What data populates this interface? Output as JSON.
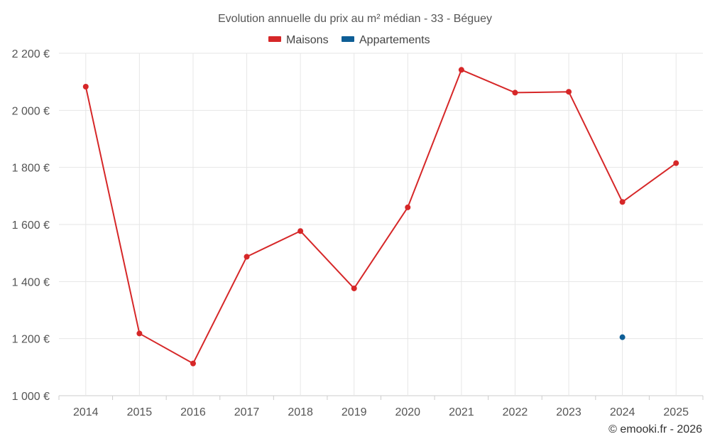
{
  "chart_data": {
    "type": "line",
    "title": "Evolution annuelle du prix au m² médian - 33 - Béguey",
    "categories": [
      "2014",
      "2015",
      "2016",
      "2017",
      "2018",
      "2019",
      "2020",
      "2021",
      "2022",
      "2023",
      "2024",
      "2025"
    ],
    "series": [
      {
        "name": "Maisons",
        "color": "#d62728",
        "values": [
          2083,
          1218,
          1113,
          1487,
          1577,
          1376,
          1660,
          2142,
          2062,
          2065,
          1679,
          1815
        ]
      },
      {
        "name": "Appartements",
        "color": "#0e5e96",
        "values": [
          null,
          null,
          null,
          null,
          null,
          null,
          null,
          null,
          null,
          null,
          1205,
          null
        ]
      }
    ],
    "ylim": [
      1000,
      2200
    ],
    "yticks": [
      1000,
      1200,
      1400,
      1600,
      1800,
      2000,
      2200
    ],
    "ytick_labels": [
      "1 000 €",
      "1 200 €",
      "1 400 €",
      "1 600 €",
      "1 800 €",
      "2 000 €",
      "2 200 €"
    ],
    "xlabel": "",
    "ylabel": "",
    "legend_position": "top-center",
    "grid": true
  },
  "credit": "© emooki.fr - 2026"
}
